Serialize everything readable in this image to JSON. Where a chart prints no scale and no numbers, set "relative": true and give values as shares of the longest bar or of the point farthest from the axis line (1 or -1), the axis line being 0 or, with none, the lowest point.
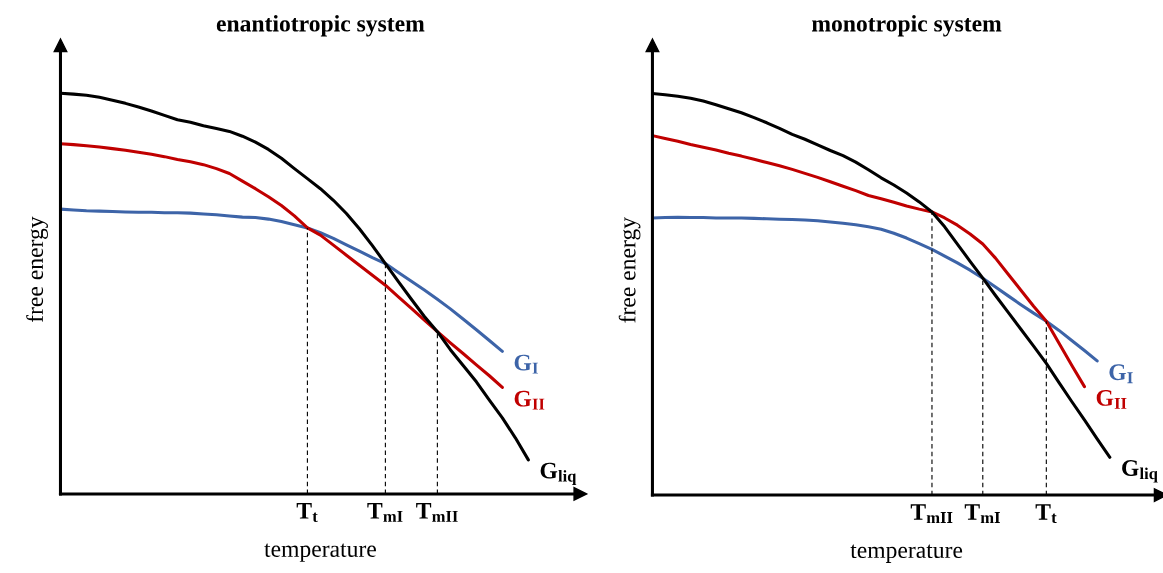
{
  "chart_data": [
    {
      "type": "line",
      "title": "enantiotropic system",
      "xlabel": "temperature",
      "ylabel": "free energy",
      "relative": true,
      "categories": [
        null,
        null,
        null,
        null,
        null,
        null,
        null,
        null,
        null,
        null,
        null,
        null,
        null,
        null,
        null,
        null,
        null,
        null,
        null,
        "T$_{t}$",
        null,
        null,
        null,
        null,
        null,
        "T$_{mI}$",
        null,
        null,
        null,
        "T$_{mII}$",
        null,
        null,
        null,
        null,
        null,
        null,
        null,
        null,
        null,
        null,
        null
      ],
      "ref_lines": [
        {
          "axis": "x",
          "value": "T$_{t}$",
          "color": "#000000",
          "line_style": "dashed"
        },
        {
          "axis": "x",
          "value": "T$_{mI}$",
          "color": "#000000",
          "line_style": "dashed"
        },
        {
          "axis": "x",
          "value": "T$_{mII}$",
          "color": "#000000",
          "line_style": "dashed"
        }
      ],
      "series": [
        {
          "name": "G$_{I}$",
          "color": "#3d64a8",
          "values": [
            0.711,
            0.709,
            0.707,
            0.706,
            0.705,
            0.704,
            0.703,
            0.703,
            0.702,
            0.702,
            0.701,
            0.699,
            0.697,
            0.694,
            0.691,
            0.69,
            0.686,
            0.68,
            0.672,
            0.664,
            0.652,
            0.638,
            0.622,
            0.606,
            0.59,
            0.575,
            0.553,
            0.531,
            0.509,
            0.486,
            0.462,
            0.436,
            0.41,
            0.383,
            0.356,
            null,
            null,
            null,
            null,
            null,
            null
          ]
        },
        {
          "name": "G$_{II}$",
          "color": "#c00000",
          "values": [
            0.874,
            0.872,
            0.869,
            0.866,
            0.862,
            0.858,
            0.853,
            0.848,
            0.842,
            0.835,
            0.829,
            0.822,
            0.812,
            0.8,
            0.781,
            0.762,
            0.742,
            0.72,
            0.694,
            0.664,
            0.646,
            0.621,
            0.596,
            0.571,
            0.546,
            0.521,
            0.492,
            0.463,
            0.434,
            0.405,
            0.377,
            0.35,
            0.322,
            0.295,
            0.266,
            null,
            null,
            null,
            null,
            null,
            null
          ]
        },
        {
          "name": "G$_{liq}$",
          "color": "#000000",
          "values": [
            1.0,
            0.998,
            0.995,
            0.99,
            0.983,
            0.975,
            0.966,
            0.956,
            0.945,
            0.934,
            0.928,
            0.919,
            0.912,
            0.905,
            0.893,
            0.878,
            0.86,
            0.838,
            0.812,
            0.787,
            0.762,
            0.733,
            0.7,
            0.662,
            0.62,
            0.575,
            0.53,
            0.486,
            0.443,
            0.405,
            0.36,
            0.32,
            0.28,
            0.234,
            0.19,
            0.14,
            0.085,
            null,
            null,
            null,
            null
          ]
        }
      ]
    },
    {
      "type": "line",
      "title": "monotropic system",
      "xlabel": "temperature",
      "ylabel": "free energy",
      "relative": true,
      "categories": [
        null,
        null,
        null,
        null,
        null,
        null,
        null,
        null,
        null,
        null,
        null,
        null,
        null,
        null,
        null,
        null,
        null,
        null,
        null,
        null,
        null,
        null,
        "T$_{mII}$",
        null,
        null,
        null,
        "T$_{mI}$",
        null,
        null,
        null,
        null,
        "T$_{t}$",
        null,
        null,
        null,
        null,
        null,
        null,
        null,
        null,
        null
      ],
      "ref_lines": [
        {
          "axis": "x",
          "value": "T$_{mII}$",
          "color": "#000000",
          "line_style": "dashed"
        },
        {
          "axis": "x",
          "value": "T$_{mI}$",
          "color": "#000000",
          "line_style": "dashed"
        },
        {
          "axis": "x",
          "value": "T$_{t}$",
          "color": "#000000",
          "line_style": "dashed"
        }
      ],
      "series": [
        {
          "name": "G$_{I}$",
          "color": "#3d64a8",
          "values": [
            0.69,
            0.691,
            0.692,
            0.691,
            0.691,
            0.69,
            0.69,
            0.69,
            0.689,
            0.688,
            0.687,
            0.686,
            0.685,
            0.683,
            0.68,
            0.677,
            0.673,
            0.668,
            0.662,
            0.652,
            0.64,
            0.626,
            0.612,
            0.595,
            0.578,
            0.56,
            0.54,
            0.518,
            0.496,
            0.474,
            0.453,
            0.433,
            0.41,
            0.385,
            0.36,
            0.334,
            null,
            null,
            null,
            null,
            null
          ]
        },
        {
          "name": "G$_{II}$",
          "color": "#c00000",
          "values": [
            0.895,
            0.888,
            0.881,
            0.873,
            0.866,
            0.859,
            0.851,
            0.844,
            0.836,
            0.828,
            0.82,
            0.811,
            0.801,
            0.791,
            0.78,
            0.769,
            0.758,
            0.746,
            0.738,
            0.729,
            0.72,
            0.712,
            0.705,
            0.69,
            0.672,
            0.65,
            0.625,
            0.59,
            0.55,
            0.51,
            0.47,
            0.433,
            0.378,
            0.323,
            0.27,
            null,
            null,
            null,
            null,
            null,
            null
          ]
        },
        {
          "name": "G$_{liq}$",
          "color": "#000000",
          "values": [
            1.0,
            0.997,
            0.993,
            0.988,
            0.981,
            0.972,
            0.962,
            0.952,
            0.94,
            0.927,
            0.913,
            0.898,
            0.886,
            0.872,
            0.858,
            0.845,
            0.829,
            0.81,
            0.79,
            0.772,
            0.752,
            0.73,
            0.705,
            0.668,
            0.625,
            0.582,
            0.54,
            0.497,
            0.455,
            0.413,
            0.371,
            0.328,
            0.28,
            0.233,
            0.187,
            0.14,
            0.094,
            null,
            null,
            null,
            null
          ]
        }
      ]
    }
  ]
}
